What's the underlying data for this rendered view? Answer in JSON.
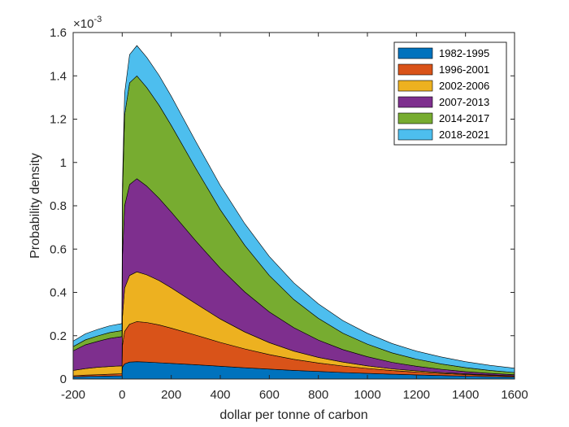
{
  "chart_data": {
    "type": "area",
    "stacked": true,
    "xlabel": "dollar per tonne of carbon",
    "ylabel": "Probability density",
    "exponent_label_base": "×10",
    "exponent_label_power": "-3",
    "xlim": [
      -200,
      1600
    ],
    "ylim": [
      0,
      1.6
    ],
    "xticks": [
      -200,
      0,
      200,
      400,
      600,
      800,
      1000,
      1200,
      1400,
      1600
    ],
    "yticks": [
      0,
      0.2,
      0.4,
      0.6,
      0.8,
      1,
      1.2,
      1.4,
      1.6
    ],
    "y_scale_factor": 0.001,
    "grid": false,
    "legend_position": "top-right",
    "x": [
      -200,
      -150,
      -100,
      -50,
      -1,
      1,
      10,
      30,
      60,
      100,
      150,
      200,
      300,
      400,
      500,
      600,
      700,
      800,
      900,
      1000,
      1100,
      1200,
      1300,
      1400,
      1500,
      1600
    ],
    "series": [
      {
        "name": "1982-1995",
        "color": "#0072BD",
        "values": [
          0.01,
          0.012,
          0.013,
          0.014,
          0.015,
          0.055,
          0.07,
          0.078,
          0.08,
          0.078,
          0.075,
          0.072,
          0.066,
          0.059,
          0.052,
          0.046,
          0.04,
          0.035,
          0.03,
          0.026,
          0.022,
          0.019,
          0.016,
          0.013,
          0.011,
          0.009
        ]
      },
      {
        "name": "1996-2001",
        "color": "#D95319",
        "values": [
          0.005,
          0.006,
          0.007,
          0.008,
          0.009,
          0.1,
          0.15,
          0.175,
          0.185,
          0.183,
          0.175,
          0.163,
          0.137,
          0.11,
          0.087,
          0.067,
          0.051,
          0.039,
          0.03,
          0.023,
          0.017,
          0.013,
          0.01,
          0.008,
          0.006,
          0.005
        ]
      },
      {
        "name": "2002-2006",
        "color": "#EDB120",
        "values": [
          0.025,
          0.03,
          0.034,
          0.036,
          0.037,
          0.13,
          0.2,
          0.225,
          0.23,
          0.22,
          0.205,
          0.186,
          0.145,
          0.108,
          0.078,
          0.055,
          0.038,
          0.026,
          0.018,
          0.012,
          0.008,
          0.006,
          0.004,
          0.003,
          0.002,
          0.001
        ]
      },
      {
        "name": "2007-2013",
        "color": "#7E2F8E",
        "values": [
          0.09,
          0.11,
          0.12,
          0.13,
          0.135,
          0.28,
          0.38,
          0.42,
          0.43,
          0.41,
          0.38,
          0.35,
          0.29,
          0.235,
          0.185,
          0.142,
          0.108,
          0.08,
          0.058,
          0.042,
          0.03,
          0.021,
          0.015,
          0.01,
          0.007,
          0.005
        ]
      },
      {
        "name": "2014-2017",
        "color": "#77AC30",
        "values": [
          0.02,
          0.023,
          0.025,
          0.027,
          0.028,
          0.28,
          0.42,
          0.47,
          0.475,
          0.455,
          0.43,
          0.4,
          0.335,
          0.27,
          0.215,
          0.168,
          0.13,
          0.1,
          0.076,
          0.058,
          0.044,
          0.033,
          0.025,
          0.019,
          0.014,
          0.01
        ]
      },
      {
        "name": "2018-2021",
        "color": "#4DBEEE",
        "values": [
          0.025,
          0.028,
          0.03,
          0.031,
          0.032,
          0.05,
          0.1,
          0.13,
          0.14,
          0.14,
          0.138,
          0.135,
          0.124,
          0.112,
          0.1,
          0.088,
          0.077,
          0.067,
          0.058,
          0.05,
          0.043,
          0.037,
          0.032,
          0.027,
          0.023,
          0.02
        ]
      }
    ]
  }
}
